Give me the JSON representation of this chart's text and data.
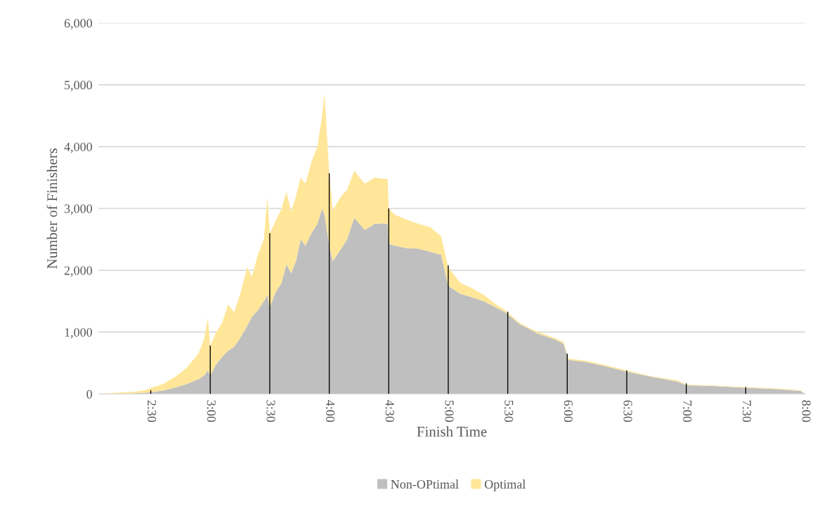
{
  "chart_data": {
    "type": "area",
    "stacked": true,
    "xlabel": "Finish Time",
    "ylabel": "Number of Finishers",
    "x": [
      2.06,
      2.2,
      2.35,
      2.45,
      2.5,
      2.6,
      2.7,
      2.8,
      2.9,
      2.95,
      2.98,
      3.0,
      3.05,
      3.1,
      3.15,
      3.2,
      3.25,
      3.31,
      3.35,
      3.4,
      3.45,
      3.48,
      3.5,
      3.55,
      3.6,
      3.64,
      3.68,
      3.72,
      3.76,
      3.8,
      3.85,
      3.9,
      3.94,
      3.96,
      4.0,
      4.03,
      4.1,
      4.15,
      4.21,
      4.3,
      4.38,
      4.45,
      4.49,
      4.5,
      4.55,
      4.65,
      4.75,
      4.85,
      4.94,
      5.0,
      5.1,
      5.19,
      5.3,
      5.4,
      5.48,
      5.6,
      5.7,
      5.76,
      5.9,
      5.97,
      6.01,
      6.15,
      6.32,
      6.5,
      6.7,
      6.93,
      7.0,
      7.2,
      7.5,
      7.75,
      7.96,
      8.0
    ],
    "series": [
      {
        "name": "Non-OPtimal",
        "color": "#bfbfbf",
        "values": [
          0,
          5,
          10,
          20,
          30,
          55,
          100,
          160,
          240,
          300,
          380,
          300,
          480,
          600,
          700,
          760,
          900,
          1100,
          1250,
          1350,
          1500,
          1600,
          1400,
          1650,
          1800,
          2100,
          1950,
          2150,
          2500,
          2400,
          2600,
          2750,
          3000,
          2900,
          2400,
          2150,
          2350,
          2500,
          2850,
          2650,
          2750,
          2760,
          2750,
          2430,
          2400,
          2360,
          2350,
          2300,
          2250,
          1750,
          1620,
          1570,
          1500,
          1400,
          1320,
          1130,
          1030,
          970,
          880,
          810,
          550,
          520,
          450,
          360,
          280,
          200,
          140,
          130,
          100,
          80,
          50,
          0
        ]
      },
      {
        "name": "Optimal",
        "color": "#ffe699",
        "values": [
          0,
          15,
          25,
          40,
          65,
          105,
          170,
          260,
          410,
          600,
          850,
          480,
          520,
          550,
          750,
          560,
          700,
          950,
          650,
          900,
          1000,
          1590,
          1200,
          1150,
          1200,
          1170,
          1000,
          1050,
          1000,
          1000,
          1150,
          1250,
          1500,
          1960,
          1170,
          820,
          850,
          800,
          760,
          750,
          750,
          720,
          730,
          570,
          500,
          460,
          400,
          400,
          300,
          300,
          180,
          150,
          100,
          50,
          30,
          20,
          20,
          30,
          20,
          30,
          20,
          20,
          20,
          20,
          10,
          20,
          10,
          10,
          10,
          10,
          10,
          0
        ]
      },
      {
        "type": "bar",
        "color": "#000000",
        "x": [
          2.5,
          3.0,
          3.5,
          4.0,
          4.5,
          5.0,
          5.5,
          6.0,
          6.5,
          7.0,
          7.5
        ],
        "values": [
          60,
          780,
          2600,
          3570,
          3000,
          2080,
          1330,
          650,
          380,
          170,
          110
        ]
      }
    ],
    "xlim": [
      2.06,
      8.0
    ],
    "xticks": [
      {
        "value": 2.5,
        "label": "2:30"
      },
      {
        "value": 3.0,
        "label": "3:00"
      },
      {
        "value": 3.5,
        "label": "3:30"
      },
      {
        "value": 4.0,
        "label": "4:00"
      },
      {
        "value": 4.5,
        "label": "4:30"
      },
      {
        "value": 5.0,
        "label": "5:00"
      },
      {
        "value": 5.5,
        "label": "5:30"
      },
      {
        "value": 6.0,
        "label": "6:00"
      },
      {
        "value": 6.5,
        "label": "6:30"
      },
      {
        "value": 7.0,
        "label": "7:00"
      },
      {
        "value": 7.5,
        "label": "7:30"
      },
      {
        "value": 8.0,
        "label": "8:00"
      }
    ],
    "ylim": [
      0,
      6000
    ],
    "yticks": [
      0,
      {
        "value": 1000,
        "label": "1,000"
      },
      {
        "value": 2000,
        "label": "2,000"
      },
      {
        "value": 3000,
        "label": "3,000"
      },
      {
        "value": 4000,
        "label": "4,000"
      },
      {
        "value": 5000,
        "label": "5,000"
      },
      {
        "value": 6000,
        "label": "6,000"
      }
    ],
    "grid": "y",
    "legend": "bottom"
  }
}
